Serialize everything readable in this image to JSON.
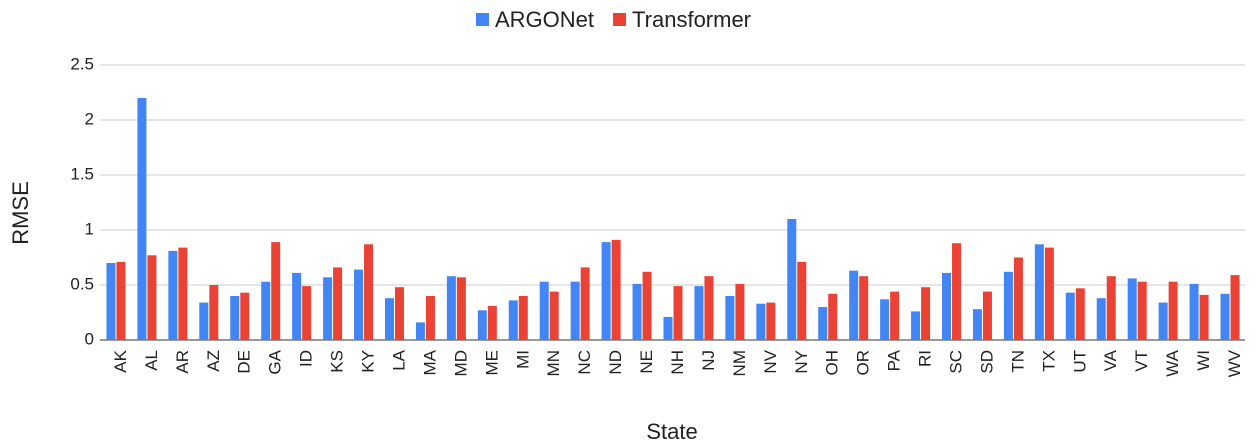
{
  "chart_data": {
    "type": "bar",
    "x_label": "State",
    "y_label": "RMSE",
    "categories": [
      "AK",
      "AL",
      "AR",
      "AZ",
      "DE",
      "GA",
      "ID",
      "KS",
      "KY",
      "LA",
      "MA",
      "MD",
      "ME",
      "MI",
      "MN",
      "NC",
      "ND",
      "NE",
      "NH",
      "NJ",
      "NM",
      "NV",
      "NY",
      "OH",
      "OR",
      "PA",
      "RI",
      "SC",
      "SD",
      "TN",
      "TX",
      "UT",
      "VA",
      "VT",
      "WA",
      "WI",
      "WV"
    ],
    "series": [
      {
        "name": "ARGONet",
        "color": "#4285f4",
        "values": [
          0.7,
          2.2,
          0.81,
          0.34,
          0.4,
          0.53,
          0.61,
          0.57,
          0.64,
          0.38,
          0.16,
          0.58,
          0.27,
          0.36,
          0.53,
          0.53,
          0.89,
          0.51,
          0.21,
          0.49,
          0.4,
          0.33,
          1.1,
          0.3,
          0.63,
          0.37,
          0.26,
          0.61,
          0.28,
          0.62,
          0.87,
          0.43,
          0.38,
          0.56,
          0.34,
          0.51,
          0.42
        ]
      },
      {
        "name": "Transformer",
        "color": "#ea4335",
        "values": [
          0.71,
          0.77,
          0.84,
          0.5,
          0.43,
          0.89,
          0.49,
          0.66,
          0.87,
          0.48,
          0.4,
          0.57,
          0.31,
          0.4,
          0.44,
          0.66,
          0.91,
          0.62,
          0.49,
          0.58,
          0.51,
          0.34,
          0.71,
          0.42,
          0.58,
          0.44,
          0.48,
          0.88,
          0.44,
          0.75,
          0.84,
          0.47,
          0.58,
          0.53,
          0.53,
          0.41,
          0.59
        ]
      }
    ],
    "ylim": [
      0,
      2.5
    ],
    "yticks": [
      0,
      0.5,
      1,
      1.5,
      2,
      2.5
    ],
    "grid": true,
    "legend": "top"
  }
}
